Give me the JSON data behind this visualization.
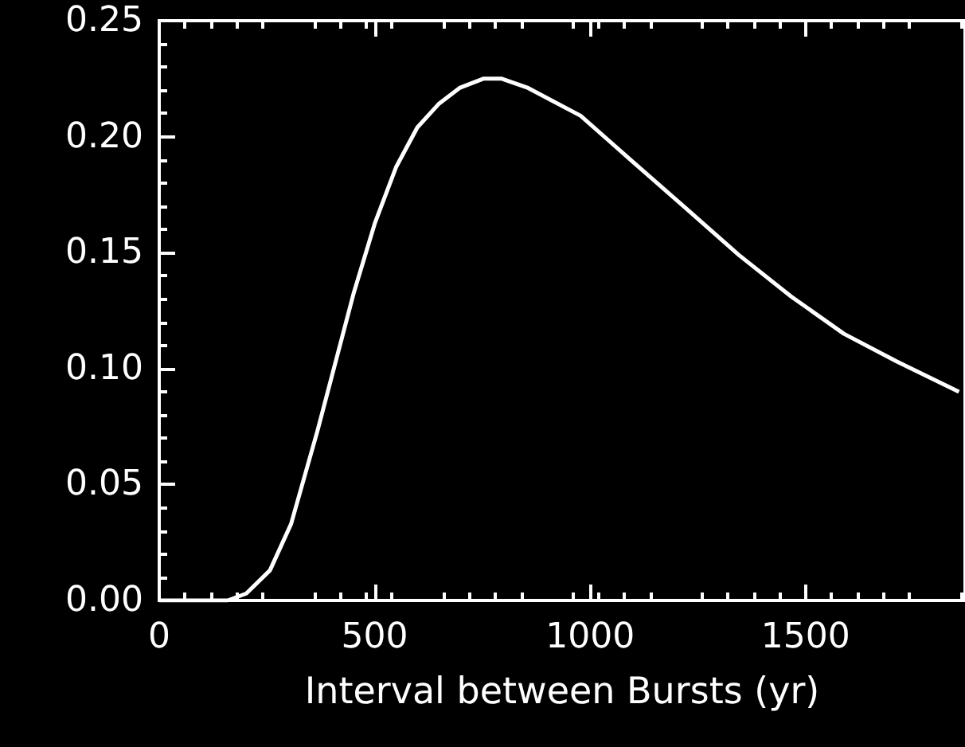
{
  "chart_data": {
    "type": "line",
    "xlabel": "Interval between Bursts (yr)",
    "x": [
      0,
      100,
      159,
      202,
      257,
      306,
      367,
      452,
      501,
      550,
      599,
      648,
      697,
      752,
      795,
      856,
      978,
      1100,
      1223,
      1345,
      1467,
      1589,
      1712,
      1856
    ],
    "series": [
      {
        "color": "#ffffff",
        "values": [
          0,
          0,
          0,
          0.003,
          0.013,
          0.033,
          0.073,
          0.133,
          0.163,
          0.187,
          0.204,
          0.214,
          0.221,
          0.225,
          0.225,
          0.221,
          0.209,
          0.189,
          0.169,
          0.149,
          0.131,
          0.115,
          0.103,
          0.09
        ]
      }
    ],
    "xlim": [
      0,
      1870
    ],
    "xticks": [
      0,
      500,
      1000,
      1500
    ],
    "ylim": [
      0,
      0.25
    ],
    "yticks": [
      {
        "value": 0,
        "label": "0.00"
      },
      {
        "value": 0.05,
        "label": "0.05"
      },
      {
        "value": 0.1,
        "label": "0.10"
      },
      {
        "value": 0.15,
        "label": "0.15"
      },
      {
        "value": 0.2,
        "label": "0.20"
      },
      {
        "value": 0.25,
        "label": "0.25"
      }
    ],
    "grid": false,
    "marker": "none",
    "line_style": "solid"
  }
}
